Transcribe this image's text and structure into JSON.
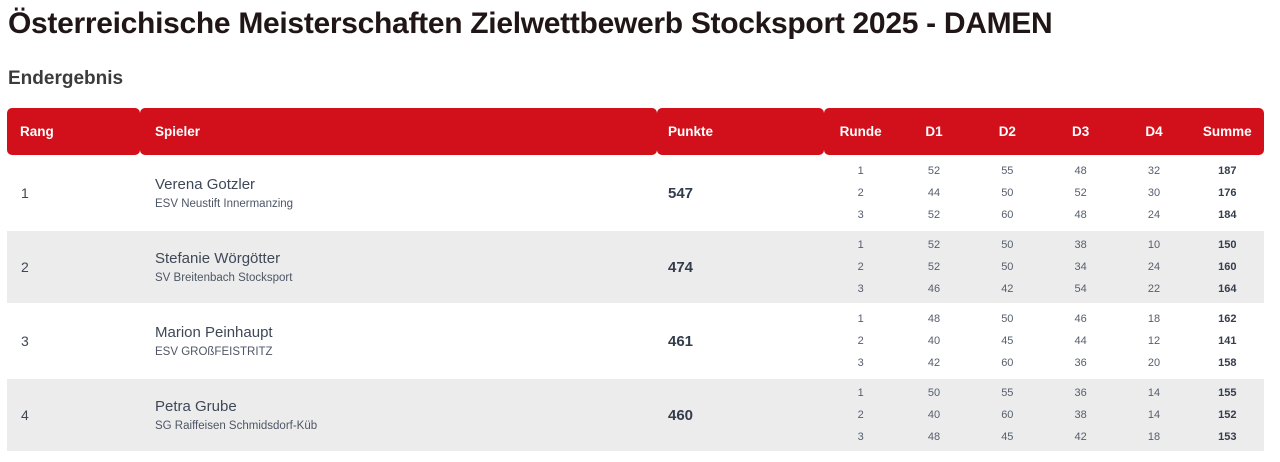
{
  "page": {
    "title": "Österreichische Meisterschaften Zielwettbewerb Stocksport 2025 - DAMEN",
    "subtitle": "Endergebnis"
  },
  "table": {
    "colors": {
      "header_bg": "#d1101b",
      "header_fg": "#ffffff",
      "stripe_bg": "#ececec"
    },
    "headers": {
      "rank": "Rang",
      "player": "Spieler",
      "points": "Punkte",
      "round": "Runde",
      "d1": "D1",
      "d2": "D2",
      "d3": "D3",
      "d4": "D4",
      "sum": "Summe"
    },
    "rows": [
      {
        "rank": "1",
        "name": "Verena Gotzler",
        "club": "ESV Neustift Innermanzing",
        "points": "547",
        "rounds": [
          {
            "round": "1",
            "d1": "52",
            "d2": "55",
            "d3": "48",
            "d4": "32",
            "sum": "187"
          },
          {
            "round": "2",
            "d1": "44",
            "d2": "50",
            "d3": "52",
            "d4": "30",
            "sum": "176"
          },
          {
            "round": "3",
            "d1": "52",
            "d2": "60",
            "d3": "48",
            "d4": "24",
            "sum": "184"
          }
        ]
      },
      {
        "rank": "2",
        "name": "Stefanie Wörgötter",
        "club": "SV Breitenbach Stocksport",
        "points": "474",
        "rounds": [
          {
            "round": "1",
            "d1": "52",
            "d2": "50",
            "d3": "38",
            "d4": "10",
            "sum": "150"
          },
          {
            "round": "2",
            "d1": "52",
            "d2": "50",
            "d3": "34",
            "d4": "24",
            "sum": "160"
          },
          {
            "round": "3",
            "d1": "46",
            "d2": "42",
            "d3": "54",
            "d4": "22",
            "sum": "164"
          }
        ]
      },
      {
        "rank": "3",
        "name": "Marion Peinhaupt",
        "club": "ESV GROßFEISTRITZ",
        "points": "461",
        "rounds": [
          {
            "round": "1",
            "d1": "48",
            "d2": "50",
            "d3": "46",
            "d4": "18",
            "sum": "162"
          },
          {
            "round": "2",
            "d1": "40",
            "d2": "45",
            "d3": "44",
            "d4": "12",
            "sum": "141"
          },
          {
            "round": "3",
            "d1": "42",
            "d2": "60",
            "d3": "36",
            "d4": "20",
            "sum": "158"
          }
        ]
      },
      {
        "rank": "4",
        "name": "Petra Grube",
        "club": "SG Raiffeisen Schmidsdorf-Küb",
        "points": "460",
        "rounds": [
          {
            "round": "1",
            "d1": "50",
            "d2": "55",
            "d3": "36",
            "d4": "14",
            "sum": "155"
          },
          {
            "round": "2",
            "d1": "40",
            "d2": "60",
            "d3": "38",
            "d4": "14",
            "sum": "152"
          },
          {
            "round": "3",
            "d1": "48",
            "d2": "45",
            "d3": "42",
            "d4": "18",
            "sum": "153"
          }
        ]
      }
    ]
  }
}
